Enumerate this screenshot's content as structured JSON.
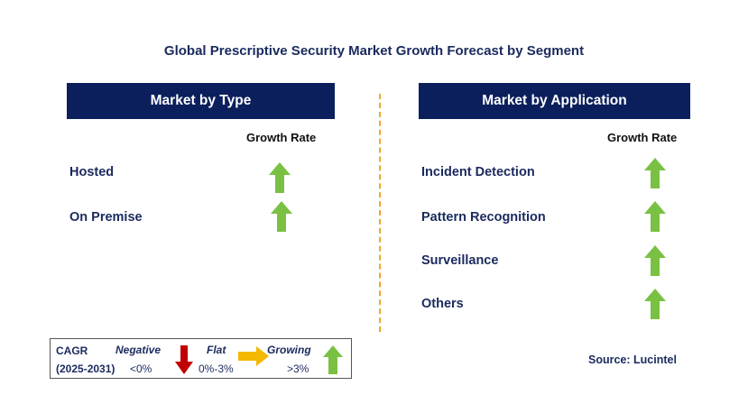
{
  "title": "Global Prescriptive Security Market Growth Forecast by Segment",
  "left_panel": {
    "header": "Market by Type",
    "growth_label": "Growth Rate",
    "rows": [
      {
        "label": "Hosted",
        "trend": "growing"
      },
      {
        "label": "On Premise",
        "trend": "growing"
      }
    ]
  },
  "right_panel": {
    "header": "Market by Application",
    "growth_label": "Growth Rate",
    "rows": [
      {
        "label": "Incident Detection",
        "trend": "growing"
      },
      {
        "label": "Pattern Recognition",
        "trend": "growing"
      },
      {
        "label": "Surveillance",
        "trend": "growing"
      },
      {
        "label": "Others",
        "trend": "growing"
      }
    ]
  },
  "legend": {
    "cagr_label": "CAGR",
    "period": "(2025-2031)",
    "negative_label": "Negative",
    "negative_value": "<0%",
    "flat_label": "Flat",
    "flat_value": "0%-3%",
    "growing_label": "Growing",
    "growing_value": ">3%"
  },
  "source": "Source: Lucintel",
  "colors": {
    "header_bg": "#0b1f5c",
    "growing": "#7ac143",
    "negative": "#c00000",
    "flat": "#f5b800",
    "divider": "#f5a623"
  }
}
